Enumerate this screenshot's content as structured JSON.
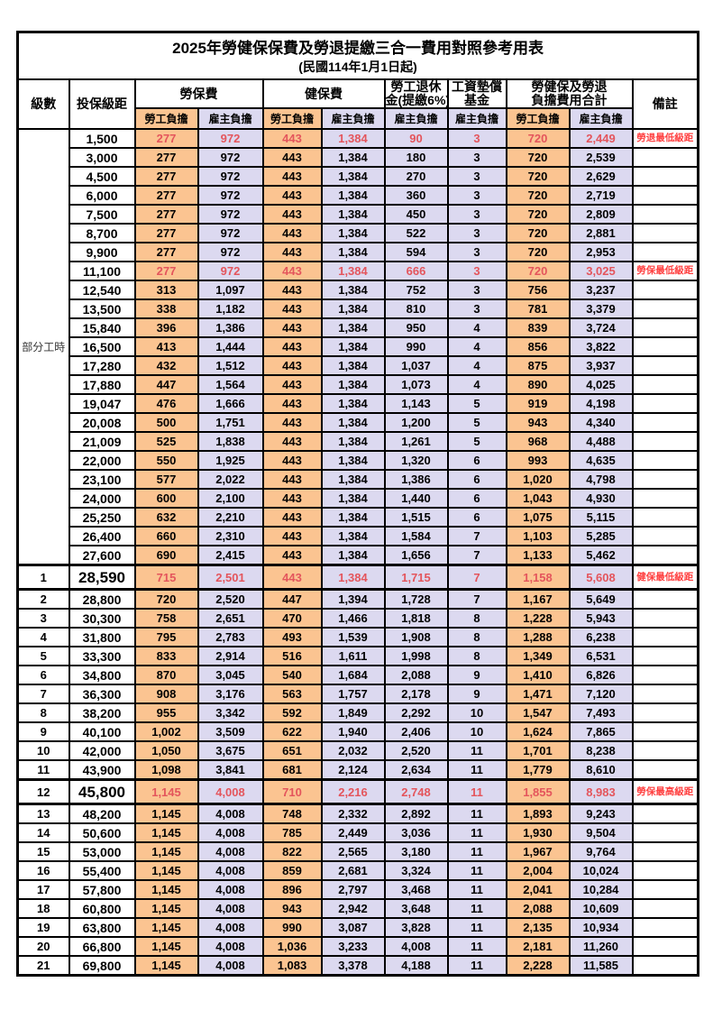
{
  "title": "2025年勞健保保費及勞退提繳三合一費用對照參考用表",
  "subtitle": "(民國114年1月1日起)",
  "colors": {
    "employee_column_bg": "#FBC491",
    "employer_column_bg": "#DCD9F0",
    "highlight_value_red": "#E4555C",
    "note_red": "#FF4040",
    "border": "#000000"
  },
  "header": {
    "level": "級數",
    "bracket": "投保級距",
    "labor_insurance": "勞保費",
    "health_insurance": "健保費",
    "pension_line1": "勞工退休",
    "pension_line2": "金(提繳6%)",
    "wage_fund_line1": "工資墊償",
    "wage_fund_line2": "基金",
    "total_line1": "勞健保及勞退",
    "total_line2": "負擔費用合計",
    "remark": "備註",
    "employee": "勞工負擔",
    "employer": "雇主負擔"
  },
  "part_time_label": "部分工時",
  "rows": [
    {
      "level": "",
      "bracket": "1,500",
      "li_emp": "277",
      "li_er": "972",
      "hi_emp": "443",
      "hi_er": "1,384",
      "pension": "90",
      "fund": "3",
      "total_emp": "720",
      "total_er": "2,449",
      "note": "勞退最低級距",
      "highlight": true,
      "emphasis": false
    },
    {
      "level": "",
      "bracket": "3,000",
      "li_emp": "277",
      "li_er": "972",
      "hi_emp": "443",
      "hi_er": "1,384",
      "pension": "180",
      "fund": "3",
      "total_emp": "720",
      "total_er": "2,539",
      "note": "",
      "highlight": false,
      "emphasis": false
    },
    {
      "level": "",
      "bracket": "4,500",
      "li_emp": "277",
      "li_er": "972",
      "hi_emp": "443",
      "hi_er": "1,384",
      "pension": "270",
      "fund": "3",
      "total_emp": "720",
      "total_er": "2,629",
      "note": "",
      "highlight": false,
      "emphasis": false
    },
    {
      "level": "",
      "bracket": "6,000",
      "li_emp": "277",
      "li_er": "972",
      "hi_emp": "443",
      "hi_er": "1,384",
      "pension": "360",
      "fund": "3",
      "total_emp": "720",
      "total_er": "2,719",
      "note": "",
      "highlight": false,
      "emphasis": false
    },
    {
      "level": "",
      "bracket": "7,500",
      "li_emp": "277",
      "li_er": "972",
      "hi_emp": "443",
      "hi_er": "1,384",
      "pension": "450",
      "fund": "3",
      "total_emp": "720",
      "total_er": "2,809",
      "note": "",
      "highlight": false,
      "emphasis": false
    },
    {
      "level": "",
      "bracket": "8,700",
      "li_emp": "277",
      "li_er": "972",
      "hi_emp": "443",
      "hi_er": "1,384",
      "pension": "522",
      "fund": "3",
      "total_emp": "720",
      "total_er": "2,881",
      "note": "",
      "highlight": false,
      "emphasis": false
    },
    {
      "level": "",
      "bracket": "9,900",
      "li_emp": "277",
      "li_er": "972",
      "hi_emp": "443",
      "hi_er": "1,384",
      "pension": "594",
      "fund": "3",
      "total_emp": "720",
      "total_er": "2,953",
      "note": "",
      "highlight": false,
      "emphasis": false
    },
    {
      "level": "",
      "bracket": "11,100",
      "li_emp": "277",
      "li_er": "972",
      "hi_emp": "443",
      "hi_er": "1,384",
      "pension": "666",
      "fund": "3",
      "total_emp": "720",
      "total_er": "3,025",
      "note": "勞保最低級距",
      "highlight": true,
      "emphasis": false
    },
    {
      "level": "",
      "bracket": "12,540",
      "li_emp": "313",
      "li_er": "1,097",
      "hi_emp": "443",
      "hi_er": "1,384",
      "pension": "752",
      "fund": "3",
      "total_emp": "756",
      "total_er": "3,237",
      "note": "",
      "highlight": false,
      "emphasis": false
    },
    {
      "level": "",
      "bracket": "13,500",
      "li_emp": "338",
      "li_er": "1,182",
      "hi_emp": "443",
      "hi_er": "1,384",
      "pension": "810",
      "fund": "3",
      "total_emp": "781",
      "total_er": "3,379",
      "note": "",
      "highlight": false,
      "emphasis": false
    },
    {
      "level": "",
      "bracket": "15,840",
      "li_emp": "396",
      "li_er": "1,386",
      "hi_emp": "443",
      "hi_er": "1,384",
      "pension": "950",
      "fund": "4",
      "total_emp": "839",
      "total_er": "3,724",
      "note": "",
      "highlight": false,
      "emphasis": false
    },
    {
      "level": "",
      "bracket": "16,500",
      "li_emp": "413",
      "li_er": "1,444",
      "hi_emp": "443",
      "hi_er": "1,384",
      "pension": "990",
      "fund": "4",
      "total_emp": "856",
      "total_er": "3,822",
      "note": "",
      "highlight": false,
      "emphasis": false
    },
    {
      "level": "",
      "bracket": "17,280",
      "li_emp": "432",
      "li_er": "1,512",
      "hi_emp": "443",
      "hi_er": "1,384",
      "pension": "1,037",
      "fund": "4",
      "total_emp": "875",
      "total_er": "3,937",
      "note": "",
      "highlight": false,
      "emphasis": false
    },
    {
      "level": "",
      "bracket": "17,880",
      "li_emp": "447",
      "li_er": "1,564",
      "hi_emp": "443",
      "hi_er": "1,384",
      "pension": "1,073",
      "fund": "4",
      "total_emp": "890",
      "total_er": "4,025",
      "note": "",
      "highlight": false,
      "emphasis": false
    },
    {
      "level": "",
      "bracket": "19,047",
      "li_emp": "476",
      "li_er": "1,666",
      "hi_emp": "443",
      "hi_er": "1,384",
      "pension": "1,143",
      "fund": "5",
      "total_emp": "919",
      "total_er": "4,198",
      "note": "",
      "highlight": false,
      "emphasis": false
    },
    {
      "level": "",
      "bracket": "20,008",
      "li_emp": "500",
      "li_er": "1,751",
      "hi_emp": "443",
      "hi_er": "1,384",
      "pension": "1,200",
      "fund": "5",
      "total_emp": "943",
      "total_er": "4,340",
      "note": "",
      "highlight": false,
      "emphasis": false
    },
    {
      "level": "",
      "bracket": "21,009",
      "li_emp": "525",
      "li_er": "1,838",
      "hi_emp": "443",
      "hi_er": "1,384",
      "pension": "1,261",
      "fund": "5",
      "total_emp": "968",
      "total_er": "4,488",
      "note": "",
      "highlight": false,
      "emphasis": false
    },
    {
      "level": "",
      "bracket": "22,000",
      "li_emp": "550",
      "li_er": "1,925",
      "hi_emp": "443",
      "hi_er": "1,384",
      "pension": "1,320",
      "fund": "6",
      "total_emp": "993",
      "total_er": "4,635",
      "note": "",
      "highlight": false,
      "emphasis": false
    },
    {
      "level": "",
      "bracket": "23,100",
      "li_emp": "577",
      "li_er": "2,022",
      "hi_emp": "443",
      "hi_er": "1,384",
      "pension": "1,386",
      "fund": "6",
      "total_emp": "1,020",
      "total_er": "4,798",
      "note": "",
      "highlight": false,
      "emphasis": false
    },
    {
      "level": "",
      "bracket": "24,000",
      "li_emp": "600",
      "li_er": "2,100",
      "hi_emp": "443",
      "hi_er": "1,384",
      "pension": "1,440",
      "fund": "6",
      "total_emp": "1,043",
      "total_er": "4,930",
      "note": "",
      "highlight": false,
      "emphasis": false
    },
    {
      "level": "",
      "bracket": "25,250",
      "li_emp": "632",
      "li_er": "2,210",
      "hi_emp": "443",
      "hi_er": "1,384",
      "pension": "1,515",
      "fund": "6",
      "total_emp": "1,075",
      "total_er": "5,115",
      "note": "",
      "highlight": false,
      "emphasis": false
    },
    {
      "level": "",
      "bracket": "26,400",
      "li_emp": "660",
      "li_er": "2,310",
      "hi_emp": "443",
      "hi_er": "1,384",
      "pension": "1,584",
      "fund": "7",
      "total_emp": "1,103",
      "total_er": "5,285",
      "note": "",
      "highlight": false,
      "emphasis": false
    },
    {
      "level": "",
      "bracket": "27,600",
      "li_emp": "690",
      "li_er": "2,415",
      "hi_emp": "443",
      "hi_er": "1,384",
      "pension": "1,656",
      "fund": "7",
      "total_emp": "1,133",
      "total_er": "5,462",
      "note": "",
      "highlight": false,
      "emphasis": false
    },
    {
      "level": "1",
      "bracket": "28,590",
      "li_emp": "715",
      "li_er": "2,501",
      "hi_emp": "443",
      "hi_er": "1,384",
      "pension": "1,715",
      "fund": "7",
      "total_emp": "1,158",
      "total_er": "5,608",
      "note": "健保最低級距",
      "highlight": true,
      "emphasis": true
    },
    {
      "level": "2",
      "bracket": "28,800",
      "li_emp": "720",
      "li_er": "2,520",
      "hi_emp": "447",
      "hi_er": "1,394",
      "pension": "1,728",
      "fund": "7",
      "total_emp": "1,167",
      "total_er": "5,649",
      "note": "",
      "highlight": false,
      "emphasis": false
    },
    {
      "level": "3",
      "bracket": "30,300",
      "li_emp": "758",
      "li_er": "2,651",
      "hi_emp": "470",
      "hi_er": "1,466",
      "pension": "1,818",
      "fund": "8",
      "total_emp": "1,228",
      "total_er": "5,943",
      "note": "",
      "highlight": false,
      "emphasis": false
    },
    {
      "level": "4",
      "bracket": "31,800",
      "li_emp": "795",
      "li_er": "2,783",
      "hi_emp": "493",
      "hi_er": "1,539",
      "pension": "1,908",
      "fund": "8",
      "total_emp": "1,288",
      "total_er": "6,238",
      "note": "",
      "highlight": false,
      "emphasis": false
    },
    {
      "level": "5",
      "bracket": "33,300",
      "li_emp": "833",
      "li_er": "2,914",
      "hi_emp": "516",
      "hi_er": "1,611",
      "pension": "1,998",
      "fund": "8",
      "total_emp": "1,349",
      "total_er": "6,531",
      "note": "",
      "highlight": false,
      "emphasis": false
    },
    {
      "level": "6",
      "bracket": "34,800",
      "li_emp": "870",
      "li_er": "3,045",
      "hi_emp": "540",
      "hi_er": "1,684",
      "pension": "2,088",
      "fund": "9",
      "total_emp": "1,410",
      "total_er": "6,826",
      "note": "",
      "highlight": false,
      "emphasis": false
    },
    {
      "level": "7",
      "bracket": "36,300",
      "li_emp": "908",
      "li_er": "3,176",
      "hi_emp": "563",
      "hi_er": "1,757",
      "pension": "2,178",
      "fund": "9",
      "total_emp": "1,471",
      "total_er": "7,120",
      "note": "",
      "highlight": false,
      "emphasis": false
    },
    {
      "level": "8",
      "bracket": "38,200",
      "li_emp": "955",
      "li_er": "3,342",
      "hi_emp": "592",
      "hi_er": "1,849",
      "pension": "2,292",
      "fund": "10",
      "total_emp": "1,547",
      "total_er": "7,493",
      "note": "",
      "highlight": false,
      "emphasis": false
    },
    {
      "level": "9",
      "bracket": "40,100",
      "li_emp": "1,002",
      "li_er": "3,509",
      "hi_emp": "622",
      "hi_er": "1,940",
      "pension": "2,406",
      "fund": "10",
      "total_emp": "1,624",
      "total_er": "7,865",
      "note": "",
      "highlight": false,
      "emphasis": false
    },
    {
      "level": "10",
      "bracket": "42,000",
      "li_emp": "1,050",
      "li_er": "3,675",
      "hi_emp": "651",
      "hi_er": "2,032",
      "pension": "2,520",
      "fund": "11",
      "total_emp": "1,701",
      "total_er": "8,238",
      "note": "",
      "highlight": false,
      "emphasis": false
    },
    {
      "level": "11",
      "bracket": "43,900",
      "li_emp": "1,098",
      "li_er": "3,841",
      "hi_emp": "681",
      "hi_er": "2,124",
      "pension": "2,634",
      "fund": "11",
      "total_emp": "1,779",
      "total_er": "8,610",
      "note": "",
      "highlight": false,
      "emphasis": false
    },
    {
      "level": "12",
      "bracket": "45,800",
      "li_emp": "1,145",
      "li_er": "4,008",
      "hi_emp": "710",
      "hi_er": "2,216",
      "pension": "2,748",
      "fund": "11",
      "total_emp": "1,855",
      "total_er": "8,983",
      "note": "勞保最高級距",
      "highlight": true,
      "emphasis": true
    },
    {
      "level": "13",
      "bracket": "48,200",
      "li_emp": "1,145",
      "li_er": "4,008",
      "hi_emp": "748",
      "hi_er": "2,332",
      "pension": "2,892",
      "fund": "11",
      "total_emp": "1,893",
      "total_er": "9,243",
      "note": "",
      "highlight": false,
      "emphasis": false
    },
    {
      "level": "14",
      "bracket": "50,600",
      "li_emp": "1,145",
      "li_er": "4,008",
      "hi_emp": "785",
      "hi_er": "2,449",
      "pension": "3,036",
      "fund": "11",
      "total_emp": "1,930",
      "total_er": "9,504",
      "note": "",
      "highlight": false,
      "emphasis": false
    },
    {
      "level": "15",
      "bracket": "53,000",
      "li_emp": "1,145",
      "li_er": "4,008",
      "hi_emp": "822",
      "hi_er": "2,565",
      "pension": "3,180",
      "fund": "11",
      "total_emp": "1,967",
      "total_er": "9,764",
      "note": "",
      "highlight": false,
      "emphasis": false
    },
    {
      "level": "16",
      "bracket": "55,400",
      "li_emp": "1,145",
      "li_er": "4,008",
      "hi_emp": "859",
      "hi_er": "2,681",
      "pension": "3,324",
      "fund": "11",
      "total_emp": "2,004",
      "total_er": "10,024",
      "note": "",
      "highlight": false,
      "emphasis": false
    },
    {
      "level": "17",
      "bracket": "57,800",
      "li_emp": "1,145",
      "li_er": "4,008",
      "hi_emp": "896",
      "hi_er": "2,797",
      "pension": "3,468",
      "fund": "11",
      "total_emp": "2,041",
      "total_er": "10,284",
      "note": "",
      "highlight": false,
      "emphasis": false
    },
    {
      "level": "18",
      "bracket": "60,800",
      "li_emp": "1,145",
      "li_er": "4,008",
      "hi_emp": "943",
      "hi_er": "2,942",
      "pension": "3,648",
      "fund": "11",
      "total_emp": "2,088",
      "total_er": "10,609",
      "note": "",
      "highlight": false,
      "emphasis": false
    },
    {
      "level": "19",
      "bracket": "63,800",
      "li_emp": "1,145",
      "li_er": "4,008",
      "hi_emp": "990",
      "hi_er": "3,087",
      "pension": "3,828",
      "fund": "11",
      "total_emp": "2,135",
      "total_er": "10,934",
      "note": "",
      "highlight": false,
      "emphasis": false
    },
    {
      "level": "20",
      "bracket": "66,800",
      "li_emp": "1,145",
      "li_er": "4,008",
      "hi_emp": "1,036",
      "hi_er": "3,233",
      "pension": "4,008",
      "fund": "11",
      "total_emp": "2,181",
      "total_er": "11,260",
      "note": "",
      "highlight": false,
      "emphasis": false
    },
    {
      "level": "21",
      "bracket": "69,800",
      "li_emp": "1,145",
      "li_er": "4,008",
      "hi_emp": "1,083",
      "hi_er": "3,378",
      "pension": "4,188",
      "fund": "11",
      "total_emp": "2,228",
      "total_er": "11,585",
      "note": "",
      "highlight": false,
      "emphasis": false
    }
  ]
}
